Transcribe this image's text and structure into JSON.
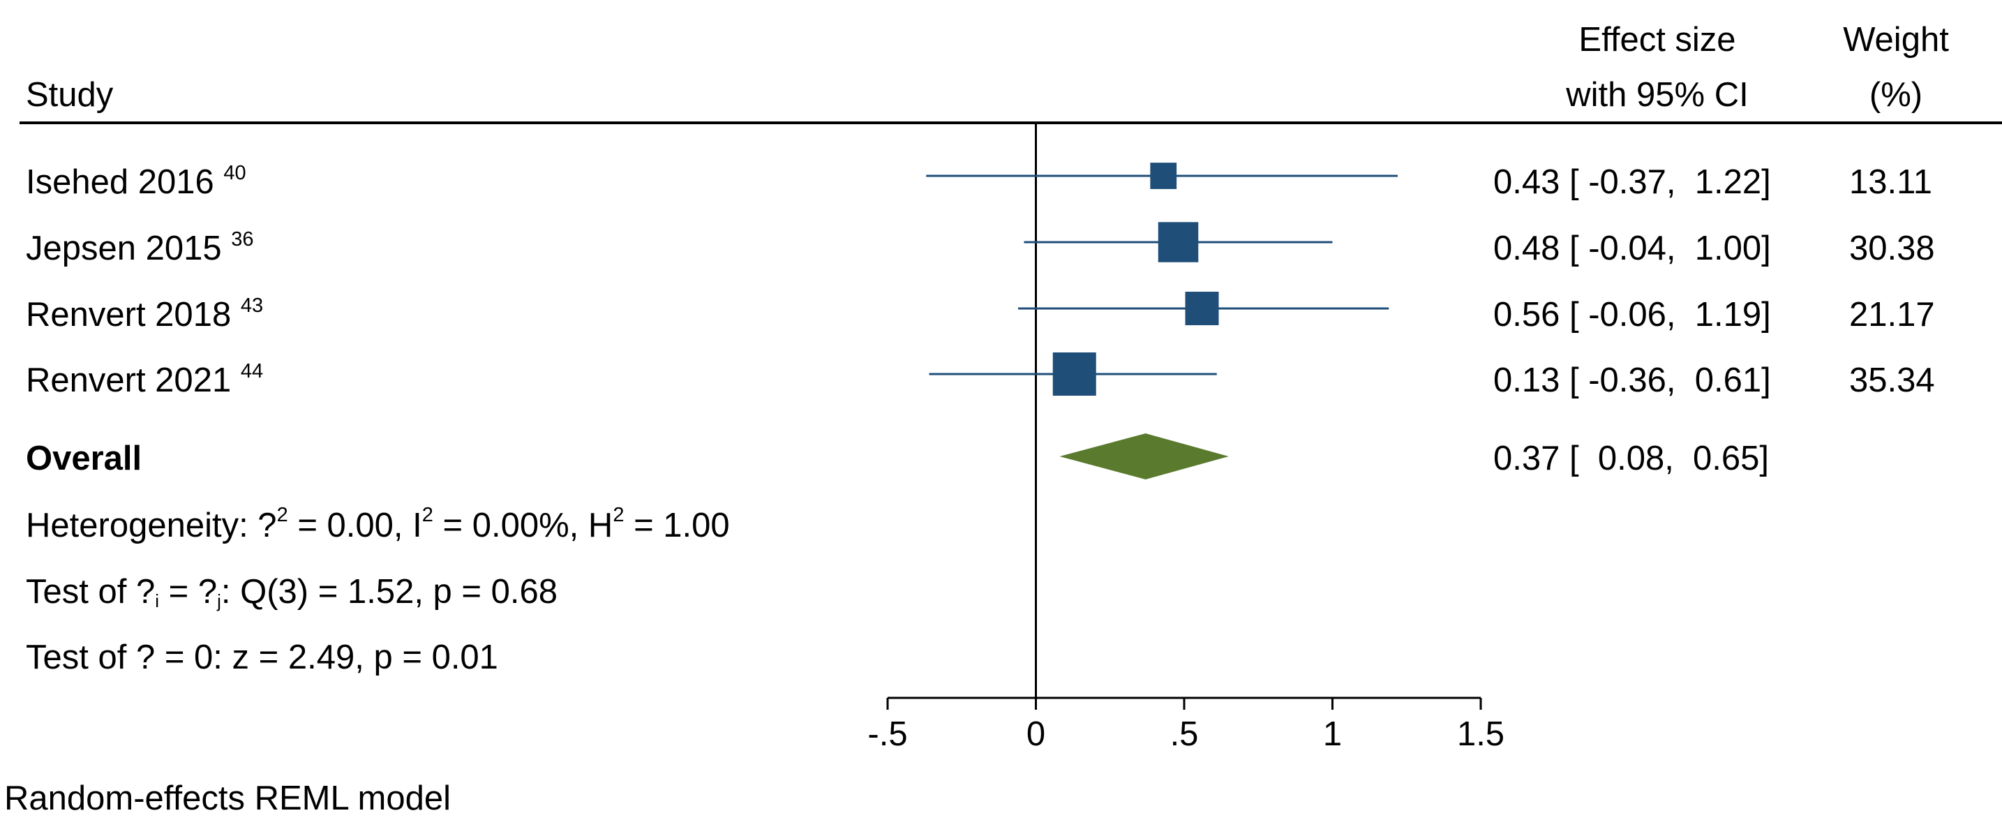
{
  "chart_data": {
    "type": "forest",
    "headers": {
      "study": "Study",
      "effect_line1": "Effect size",
      "effect_line2": "with 95% CI",
      "weight_line1": "Weight",
      "weight_line2": "(%)"
    },
    "studies": [
      {
        "name": "Isehed 2016",
        "ref": "40",
        "es": 0.43,
        "lo": -0.37,
        "hi": 1.22,
        "ci_text": "0.43 [ -0.37,  1.22]",
        "weight": 13.11,
        "weight_text": "13.11"
      },
      {
        "name": "Jepsen 2015",
        "ref": "36",
        "es": 0.48,
        "lo": -0.04,
        "hi": 1.0,
        "ci_text": "0.48 [ -0.04,  1.00]",
        "weight": 30.38,
        "weight_text": "30.38"
      },
      {
        "name": "Renvert 2018",
        "ref": "43",
        "es": 0.56,
        "lo": -0.06,
        "hi": 1.19,
        "ci_text": "0.56 [ -0.06,  1.19]",
        "weight": 21.17,
        "weight_text": "21.17"
      },
      {
        "name": "Renvert 2021",
        "ref": "44",
        "es": 0.13,
        "lo": -0.36,
        "hi": 0.61,
        "ci_text": "0.13 [ -0.36,  0.61]",
        "weight": 35.34,
        "weight_text": "35.34"
      }
    ],
    "overall": {
      "label": "Overall",
      "es": 0.37,
      "lo": 0.08,
      "hi": 0.65,
      "ci_text": "0.37 [  0.08,  0.65]"
    },
    "heterogeneity": {
      "prefix": "Heterogeneity: ?",
      "sup1": "2",
      "mid1": " = 0.00, I",
      "sup2": "2",
      "mid2": " = 0.00%, H",
      "sup3": "2",
      "end": " = 1.00"
    },
    "test_homogeneity": {
      "p1": "Test of ?",
      "sub1": "i",
      "p2": " = ?",
      "sub2": "j",
      "p3": ": Q(3) = 1.52, p = 0.68"
    },
    "test_effect": "Test of ? = 0: z = 2.49, p = 0.01",
    "x_ticks": [
      {
        "value": -0.5,
        "label": "-.5"
      },
      {
        "value": 0,
        "label": "0"
      },
      {
        "value": 0.5,
        "label": ".5"
      },
      {
        "value": 1,
        "label": "1"
      },
      {
        "value": 1.5,
        "label": "1.5"
      }
    ],
    "xlim": [
      -0.5,
      1.5
    ],
    "null_line": 0,
    "model_note": "Random-effects REML model",
    "colors": {
      "study_marker": "#1f4e79",
      "ci_line": "#1f4e79",
      "overall_diamond": "#5a7a2e",
      "axis": "#000000"
    }
  }
}
